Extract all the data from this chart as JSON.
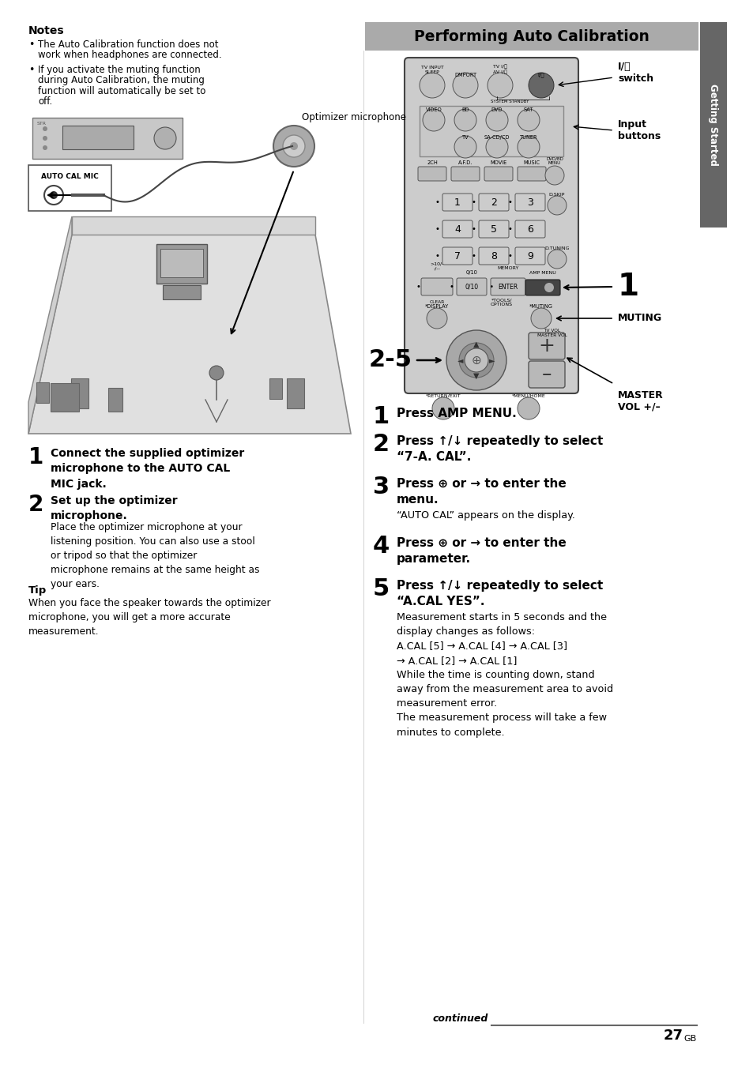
{
  "bg_color": "#ffffff",
  "title": "Performing Auto Calibration",
  "title_bg": "#aaaaaa",
  "side_tab_text": "Getting Started",
  "side_tab_bg": "#666666",
  "notes_title": "Notes",
  "notes_bullets": [
    "The Auto Calibration function does not work when headphones are connected.",
    "If you activate the muting function during Auto Calibration, the muting function will automatically be set to off."
  ],
  "optimizer_label": "Optimizer microphone",
  "step1_bold": "Connect the supplied optimizer\nmicrophone to the AUTO CAL\nMIC jack.",
  "step2_bold": "Set up the optimizer\nmicrophone.",
  "step2_text": "Place the optimizer microphone at your\nlistening position. You can also use a stool\nor tripod so that the optimizer\nmicrophone remains at the same height as\nyour ears.",
  "tip_title": "Tip",
  "tip_text": "When you face the speaker towards the optimizer\nmicrophone, you will get a more accurate\nmeasurement.",
  "right_step1_bold": "Press AMP MENU.",
  "right_step2_bold": "Press ↑/↓ repeatedly to select\n“7-A. CAL”.",
  "right_step3_bold": "Press ⊕ or → to enter the\nmenu.",
  "right_step3_text": "“AUTO CAL” appears on the display.",
  "right_step4_bold": "Press ⊕ or → to enter the\nparameter.",
  "right_step5_bold": "Press ↑/↓ repeatedly to select\n“A.CAL YES”.",
  "right_step5_text": "Measurement starts in 5 seconds and the\ndisplay changes as follows:\nA.CAL [5] → A.CAL [4] → A.CAL [3]\n→ A.CAL [2] → A.CAL [1]\nWhile the time is counting down, stand\naway from the measurement area to avoid\nmeasurement error.\nThe measurement process will take a few\nminutes to complete.",
  "label_switch": "I/⏻\nswitch",
  "label_input": "Input\nbuttons",
  "label_muting": "MUTING",
  "label_master": "MASTER\nVOL +/–",
  "label_25": "2-5",
  "continued_text": "continued",
  "page_num": "27",
  "page_suffix": "GB",
  "rc_body_color": "#cccccc",
  "rc_edge_color": "#444444",
  "btn_color": "#b8b8b8",
  "btn_num_color": "#d8d8d8",
  "btn_dark_color": "#555555"
}
